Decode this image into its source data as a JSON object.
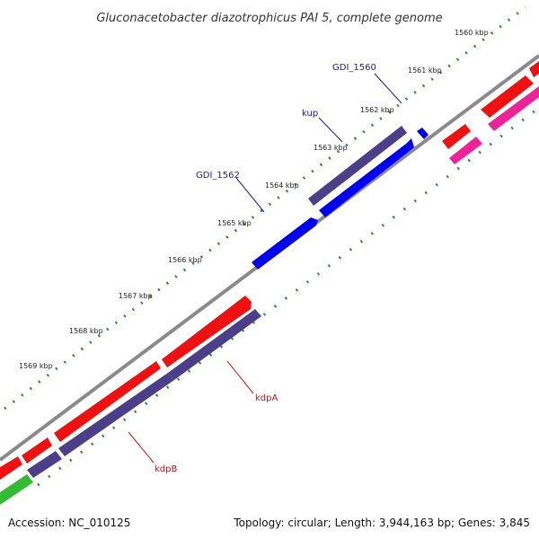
{
  "title": "Gluconacetobacter diazotrophicus PAI 5, complete genome",
  "footer": {
    "accession": "Accession: NC_010125",
    "summary": "Topology: circular; Length: 3,944,163 bp; Genes: 3,845"
  },
  "colors": {
    "backbone": "#8a8a8a",
    "tick": "#2e8b2e",
    "blue_feature": "#0000ee",
    "slate_feature": "#4a3f88",
    "red_feature": "#ee1111",
    "pink_feature": "#ee2299",
    "green_feature": "#33bb33",
    "blue_label": "#1a1aa0",
    "red_label": "#cc1111"
  },
  "ticks": [
    {
      "label": "1560 kbp"
    },
    {
      "label": "1561 kbp"
    },
    {
      "label": "1562 kbp"
    },
    {
      "label": "1563 kbp"
    },
    {
      "label": "1564 kbp"
    },
    {
      "label": "1565 kbp"
    },
    {
      "label": "1566 kbp"
    },
    {
      "label": "1567 kbp"
    },
    {
      "label": "1568 kbp"
    },
    {
      "label": "1569 kbp"
    }
  ],
  "gene_labels": [
    {
      "name": "GDI_1560",
      "color": "blue"
    },
    {
      "name": "kup",
      "color": "blue"
    },
    {
      "name": "GDI_1562",
      "color": "blue"
    },
    {
      "name": "kdpA",
      "color": "red"
    },
    {
      "name": "kdpB",
      "color": "red"
    }
  ]
}
